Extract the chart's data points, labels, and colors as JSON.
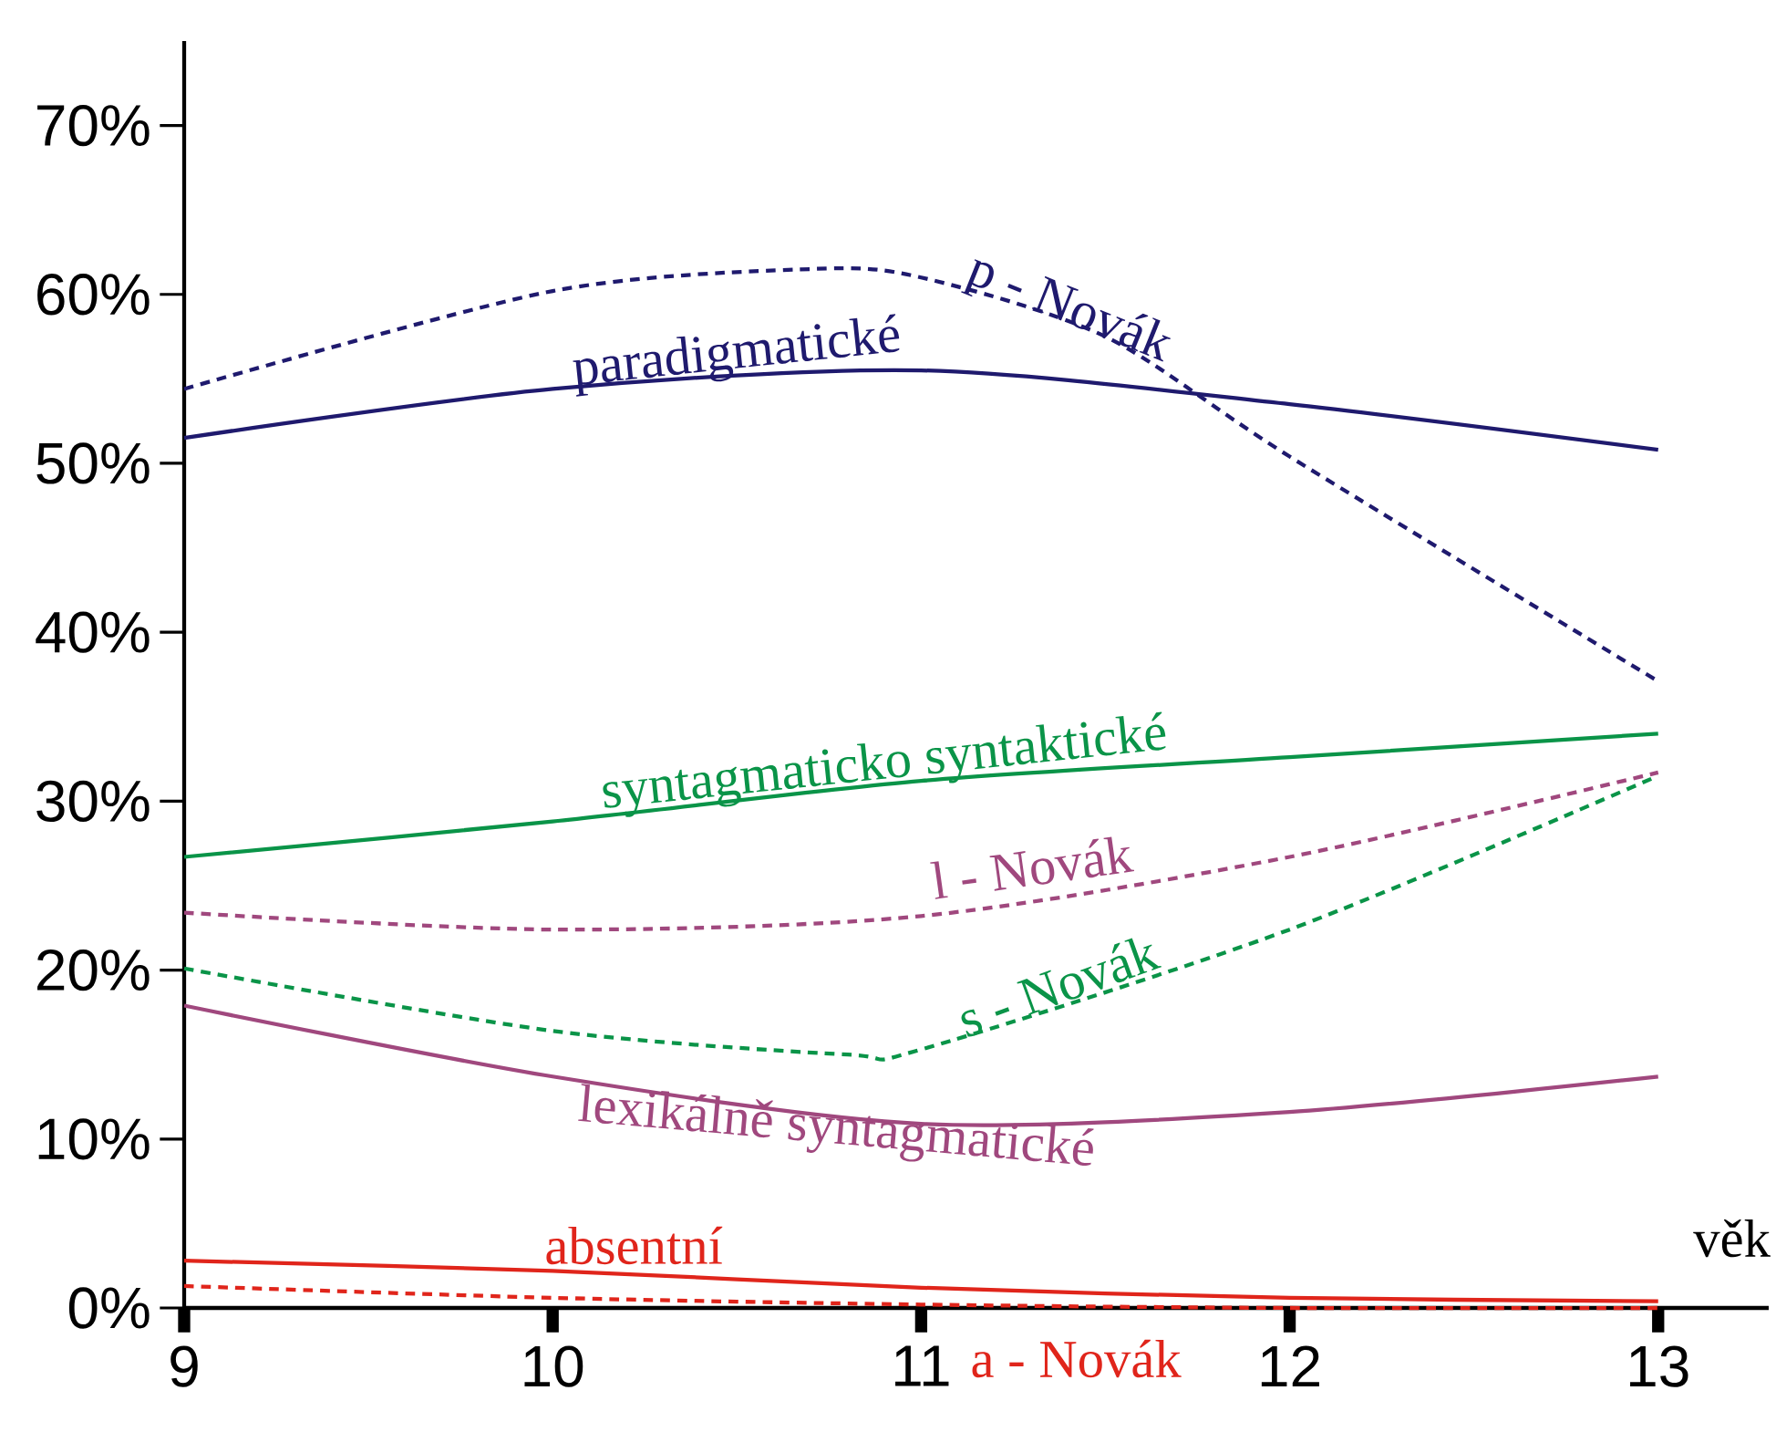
{
  "chart_data": {
    "type": "line",
    "xlabel": "věk",
    "xlim": [
      9,
      13.3
    ],
    "xticks": [
      9,
      10,
      11,
      12,
      13
    ],
    "ylim": [
      0,
      75
    ],
    "yticks": [
      {
        "value": 0,
        "label": "0%"
      },
      {
        "value": 10,
        "label": "10%"
      },
      {
        "value": 20,
        "label": "20%"
      },
      {
        "value": 30,
        "label": "30%"
      },
      {
        "value": 40,
        "label": "40%"
      },
      {
        "value": 50,
        "label": "50%"
      },
      {
        "value": 60,
        "label": "60%"
      },
      {
        "value": 70,
        "label": "70%"
      }
    ],
    "legend": false,
    "series": [
      {
        "name": "p - Novák",
        "color": "#1f1a6e",
        "line_style": "dashed",
        "x": [
          9,
          10,
          10.7,
          11,
          11.5,
          12,
          13
        ],
        "values": [
          54.4,
          60.2,
          61.5,
          61,
          57.5,
          50.4,
          37.1
        ]
      },
      {
        "name": "paradigmatické",
        "color": "#1f1a6e",
        "line_style": "solid",
        "x": [
          9,
          10,
          11,
          12,
          13
        ],
        "values": [
          51.5,
          54.4,
          55.5,
          53.5,
          50.8
        ]
      },
      {
        "name": "syntagmaticko syntaktické",
        "color": "#0a9448",
        "line_style": "solid",
        "x": [
          9,
          10,
          11,
          12,
          13
        ],
        "values": [
          26.7,
          28.8,
          31.2,
          32.6,
          34.0
        ]
      },
      {
        "name": "l - Novák",
        "color": "#a0487e",
        "line_style": "dashed",
        "x": [
          9,
          10,
          11,
          12,
          13
        ],
        "values": [
          23.4,
          22.4,
          23.2,
          26.7,
          31.7
        ]
      },
      {
        "name": "s - Novák",
        "color": "#0a9448",
        "line_style": "dashed",
        "x": [
          9,
          10,
          10.8,
          11,
          12,
          13
        ],
        "values": [
          20.1,
          16.4,
          15.0,
          15.3,
          22.4,
          31.5
        ]
      },
      {
        "name": "lexikálně syntagmatické",
        "color": "#a0487e",
        "line_style": "solid",
        "x": [
          9,
          10,
          11,
          12,
          13
        ],
        "values": [
          17.9,
          13.7,
          10.9,
          11.6,
          13.7
        ]
      },
      {
        "name": "absentní",
        "color": "#e0251b",
        "line_style": "solid",
        "x": [
          9,
          10,
          11,
          12,
          13
        ],
        "values": [
          2.8,
          2.2,
          1.2,
          0.6,
          0.4
        ]
      },
      {
        "name": "a - Novák",
        "color": "#e0251b",
        "line_style": "dashed",
        "x": [
          9,
          10,
          11,
          12,
          13
        ],
        "values": [
          1.3,
          0.6,
          0.2,
          0,
          0
        ]
      }
    ]
  }
}
